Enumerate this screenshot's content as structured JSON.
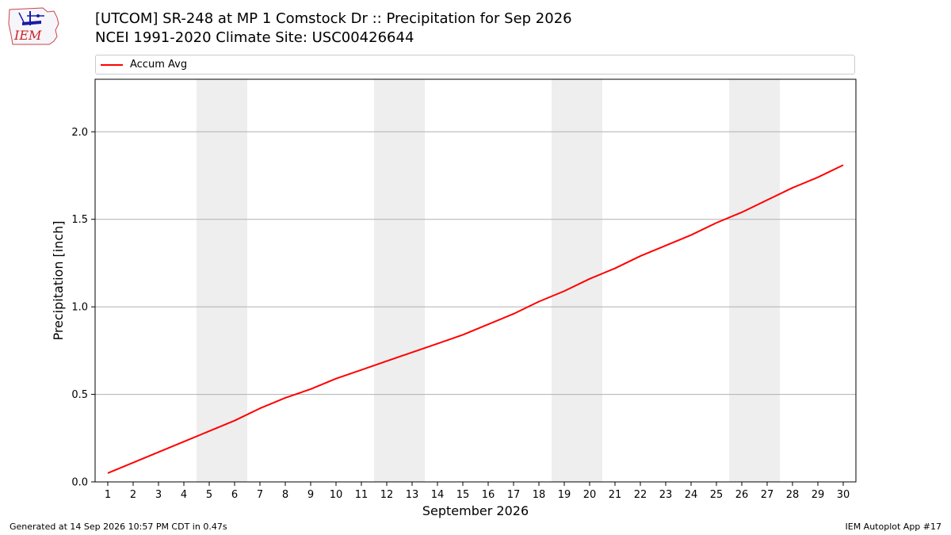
{
  "header": {
    "logo_text": "IEM",
    "title_line1": "[UTCOM] SR-248 at MP 1 Comstock Dr  :: Precipitation for Sep 2026",
    "title_line2": "NCEI 1991-2020 Climate Site: USC00426644"
  },
  "footer": {
    "generated": "Generated at 14 Sep 2026 10:57 PM CDT in 0.47s",
    "app": "IEM Autoplot App #17"
  },
  "chart_data": {
    "type": "line",
    "title": "[UTCOM] SR-248 at MP 1 Comstock Dr  :: Precipitation for Sep 2026",
    "subtitle": "NCEI 1991-2020 Climate Site: USC00426644",
    "xlabel": "September 2026",
    "ylabel": "Precipitation [inch]",
    "x": [
      1,
      2,
      3,
      4,
      5,
      6,
      7,
      8,
      9,
      10,
      11,
      12,
      13,
      14,
      15,
      16,
      17,
      18,
      19,
      20,
      21,
      22,
      23,
      24,
      25,
      26,
      27,
      28,
      29,
      30
    ],
    "xticks": [
      "1",
      "2",
      "3",
      "4",
      "5",
      "6",
      "7",
      "8",
      "9",
      "10",
      "11",
      "12",
      "13",
      "14",
      "15",
      "16",
      "17",
      "18",
      "19",
      "20",
      "21",
      "22",
      "23",
      "24",
      "25",
      "26",
      "27",
      "28",
      "29",
      "30"
    ],
    "xlim": [
      0.5,
      30.5
    ],
    "ylim": [
      0,
      2.3
    ],
    "yticks": [
      0.0,
      0.5,
      1.0,
      1.5,
      2.0
    ],
    "ytick_labels": [
      "0.0",
      "0.5",
      "1.0",
      "1.5",
      "2.0"
    ],
    "grid": "y-major",
    "legend": "top",
    "weekend_shading": [
      [
        4.5,
        6.5
      ],
      [
        11.5,
        13.5
      ],
      [
        18.5,
        20.5
      ],
      [
        25.5,
        27.5
      ]
    ],
    "series": [
      {
        "name": "Accum Avg",
        "color": "#ff0000",
        "values": [
          0.05,
          0.11,
          0.17,
          0.23,
          0.29,
          0.35,
          0.42,
          0.48,
          0.53,
          0.59,
          0.64,
          0.69,
          0.74,
          0.79,
          0.84,
          0.9,
          0.96,
          1.03,
          1.09,
          1.16,
          1.22,
          1.29,
          1.35,
          1.41,
          1.48,
          1.54,
          1.61,
          1.68,
          1.74,
          1.81
        ]
      }
    ]
  }
}
